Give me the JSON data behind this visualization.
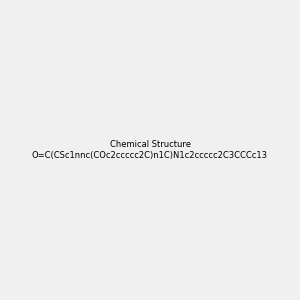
{
  "smiles": "O=C(CSc1nnc(COc2ccccc2C)n1C)N1c2ccccc2C3CCCc13",
  "image_size": 300,
  "background_color": "#f0f0f0",
  "title": "",
  "atom_colors": {
    "N": "#0000ff",
    "O": "#ff0000",
    "S": "#cccc00"
  }
}
